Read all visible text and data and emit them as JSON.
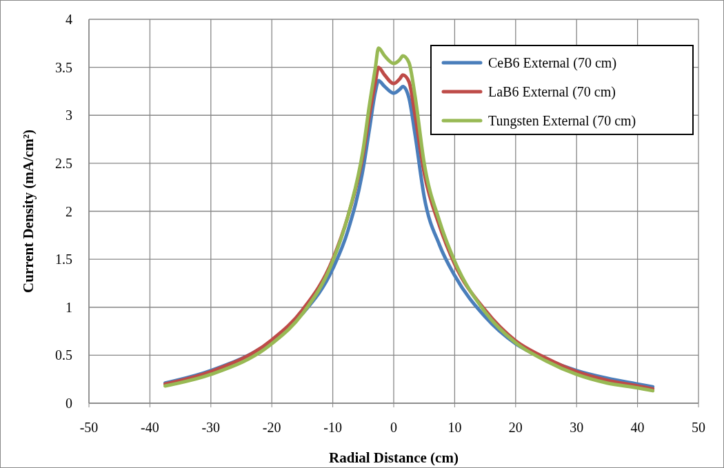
{
  "chart_data": {
    "type": "line",
    "xlabel": "Radial Distance (cm)",
    "ylabel": "Current Density (mA/cm²)",
    "x": [
      -37.5,
      -30,
      -20,
      -15,
      -10,
      -7.5,
      -5,
      -4,
      -3,
      -2.5,
      -1.5,
      0,
      1,
      1.5,
      2.5,
      3.5,
      5,
      7.5,
      10,
      15,
      20,
      25,
      30,
      35,
      40,
      42.5
    ],
    "series": [
      {
        "name": "CeB6 External (70 cm)",
        "color": "#4a7ebb",
        "values": [
          0.21,
          0.34,
          0.65,
          0.93,
          1.4,
          1.8,
          2.45,
          2.85,
          3.25,
          3.36,
          3.3,
          3.23,
          3.27,
          3.3,
          3.18,
          2.8,
          2.15,
          1.65,
          1.33,
          0.9,
          0.62,
          0.46,
          0.34,
          0.26,
          0.2,
          0.17
        ]
      },
      {
        "name": "LaB6 External (70 cm)",
        "color": "#be4b48",
        "values": [
          0.2,
          0.33,
          0.66,
          0.97,
          1.5,
          1.95,
          2.6,
          3.0,
          3.35,
          3.5,
          3.42,
          3.33,
          3.38,
          3.42,
          3.35,
          3.0,
          2.4,
          1.85,
          1.45,
          0.97,
          0.65,
          0.47,
          0.33,
          0.24,
          0.18,
          0.15
        ]
      },
      {
        "name": "Tungsten External (70 cm)",
        "color": "#98b954",
        "values": [
          0.18,
          0.3,
          0.62,
          0.93,
          1.48,
          1.95,
          2.65,
          3.1,
          3.5,
          3.7,
          3.62,
          3.54,
          3.58,
          3.62,
          3.55,
          3.2,
          2.5,
          1.9,
          1.48,
          0.95,
          0.63,
          0.44,
          0.3,
          0.21,
          0.16,
          0.13
        ]
      }
    ],
    "xlim": [
      -50,
      50
    ],
    "xticks": [
      -50,
      -40,
      -30,
      -20,
      -10,
      0,
      10,
      20,
      30,
      40,
      50
    ],
    "ylim": [
      0,
      4
    ],
    "yticks": [
      0,
      0.5,
      1,
      1.5,
      2,
      2.5,
      3,
      3.5,
      4
    ],
    "grid": true,
    "legend": "top right",
    "line_style": "solid",
    "marker": "none"
  }
}
